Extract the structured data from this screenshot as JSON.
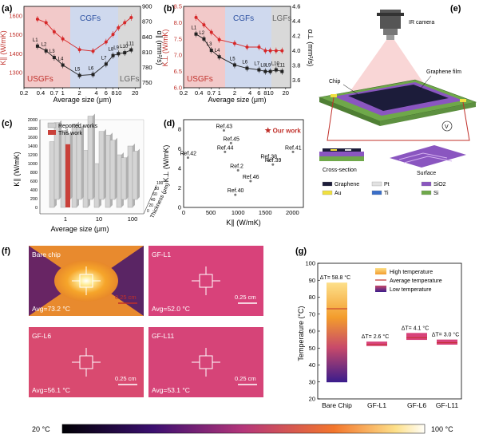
{
  "panels": {
    "a": {
      "label": "(a)",
      "regions": [
        "USGFs",
        "CGFs",
        "LGFs"
      ],
      "xlabel": "Average size (μm)",
      "ylabel_left": "K∥ (W/mK)",
      "ylabel_right": "α∥ (mm²/s)",
      "xticks": [
        "0.2",
        "0.4",
        "0.7",
        "1",
        "2",
        "4",
        "6",
        "8",
        "10",
        "20"
      ],
      "yticks_left": [
        "1300",
        "1400",
        "1500",
        "1600"
      ],
      "yticks_right": [
        "750",
        "780",
        "810",
        "840",
        "870",
        "900"
      ],
      "point_labels": [
        "L1",
        "L2",
        "L3",
        "L4",
        "L5",
        "L6",
        "L7",
        "L8",
        "L9",
        "L10",
        "L11"
      ]
    },
    "b": {
      "label": "(b)",
      "regions": [
        "USGFs",
        "CGFs",
        "LGFs"
      ],
      "xlabel": "Average size (μm)",
      "ylabel_left": "K⊥ (W/mK)",
      "ylabel_right": "α⊥ (mm²/s)",
      "xticks": [
        "0.2",
        "0.4",
        "0.7",
        "1",
        "2",
        "4",
        "6",
        "8",
        "10",
        "20"
      ],
      "yticks_left": [
        "6.0",
        "6.5",
        "7.0",
        "7.5",
        "8.0",
        "8.5"
      ],
      "yticks_right": [
        "3.6",
        "3.8",
        "4.0",
        "4.2",
        "4.4",
        "4.6"
      ],
      "point_labels": [
        "L1",
        "L2",
        "L3",
        "L4",
        "L5",
        "L6",
        "L7",
        "L8",
        "L9",
        "L10",
        "L11"
      ]
    },
    "c": {
      "label": "(c)",
      "legend": [
        "Reported works",
        "This work"
      ],
      "xlabel": "Average size (μm)",
      "ylabel": "K∥ (W/mK)",
      "zlabel": "Thickness (μm)",
      "yticks": [
        "0",
        "200",
        "400",
        "600",
        "800",
        "1000",
        "1200",
        "1400",
        "1600",
        "1800",
        "2000"
      ],
      "xticks": [
        "1",
        "10",
        "100"
      ],
      "zticks": [
        "0",
        "20",
        "40",
        "60",
        "80",
        "100"
      ]
    },
    "d": {
      "label": "(d)",
      "xlabel": "K∥ (W/mK)",
      "ylabel": "K⊥ (W/mK)",
      "xticks": [
        "0",
        "500",
        "1000",
        "1500",
        "2000"
      ],
      "yticks": [
        "0",
        "2",
        "4",
        "6",
        "8"
      ],
      "our_work": "Our work"
    },
    "e": {
      "label": "(e)",
      "ir_camera": "IR camera",
      "chip": "Chip",
      "graphene_film": "Graphene film",
      "v_label": "V",
      "cross_section": "Cross-section",
      "surface": "Surface",
      "legend": [
        {
          "name": "Graphene",
          "color": "#1c1c3a"
        },
        {
          "name": "Pt",
          "color": "#e2e2e2"
        },
        {
          "name": "SiO2",
          "color": "#8a56c0"
        },
        {
          "name": "Au",
          "color": "#f0e040"
        },
        {
          "name": "Ti",
          "color": "#3a6ec8"
        },
        {
          "name": "Si",
          "color": "#6fa84a"
        }
      ]
    },
    "f": {
      "label": "(f)",
      "images": [
        {
          "title": "Bare chip",
          "avg": "Avg=73.2 °C",
          "scale": "0.25 cm"
        },
        {
          "title": "GF-L1",
          "avg": "Avg=52.0 °C",
          "scale": "0.25 cm"
        },
        {
          "title": "GF-L6",
          "avg": "Avg=56.1 °C",
          "scale": "0.25 cm"
        },
        {
          "title": "GF-L11",
          "avg": "Avg=53.1 °C",
          "scale": "0.25 cm"
        }
      ]
    },
    "g": {
      "label": "(g)",
      "ylabel": "Temperature (°C)",
      "legend": [
        "High temperature",
        "Average temperature",
        "Low temperature"
      ],
      "yticks": [
        "20",
        "30",
        "40",
        "50",
        "60",
        "70",
        "80",
        "90",
        "100"
      ],
      "categories": [
        "Bare Chip",
        "GF-L1",
        "GF-L6",
        "GF-L11"
      ],
      "delta_labels": [
        "ΔT= 58.8 °C",
        "ΔT= 2.6 °C",
        "ΔT= 4.1 °C",
        "ΔT= 3.0 °C"
      ]
    }
  },
  "colorbar": {
    "min_label": "20 °C",
    "max_label": "100 °C"
  },
  "chart_data": [
    {
      "type": "line",
      "panel": "a",
      "xscale": "log",
      "xlim": [
        0.2,
        25
      ],
      "series": [
        {
          "name": "K∥",
          "axis": "left",
          "color": "#222222",
          "x": [
            0.35,
            0.5,
            0.7,
            1.0,
            2.0,
            3.5,
            6.0,
            8.0,
            10.0,
            13.0,
            17.0
          ],
          "y": [
            1440,
            1415,
            1380,
            1340,
            1285,
            1290,
            1345,
            1390,
            1400,
            1405,
            1420
          ]
        },
        {
          "name": "α∥",
          "axis": "right",
          "color": "#d62728",
          "x": [
            0.35,
            0.5,
            0.7,
            1.0,
            2.0,
            3.5,
            6.0,
            8.0,
            10.0,
            13.0,
            17.0
          ],
          "y": [
            875,
            868,
            850,
            836,
            815,
            812,
            830,
            845,
            858,
            868,
            878
          ]
        }
      ],
      "ylim_left": [
        1220,
        1650
      ],
      "ylim_right": [
        740,
        900
      ]
    },
    {
      "type": "line",
      "panel": "b",
      "xscale": "log",
      "xlim": [
        0.2,
        25
      ],
      "series": [
        {
          "name": "K⊥",
          "axis": "left",
          "color": "#222222",
          "x": [
            0.35,
            0.5,
            0.7,
            1.0,
            2.0,
            3.5,
            6.0,
            8.0,
            10.0,
            13.0,
            17.0
          ],
          "y": [
            7.65,
            7.5,
            7.15,
            6.95,
            6.7,
            6.6,
            6.55,
            6.5,
            6.5,
            6.55,
            6.5
          ]
        },
        {
          "name": "α⊥",
          "axis": "right",
          "color": "#d62728",
          "x": [
            0.35,
            0.5,
            0.7,
            1.0,
            2.0,
            3.5,
            6.0,
            8.0,
            10.0,
            13.0,
            17.0
          ],
          "y": [
            4.45,
            4.35,
            4.25,
            4.15,
            4.1,
            4.05,
            4.05,
            4.0,
            4.0,
            4.0,
            4.0
          ]
        }
      ],
      "ylim_left": [
        6.0,
        8.5
      ],
      "ylim_right": [
        3.5,
        4.6
      ]
    },
    {
      "type": "bar",
      "panel": "c",
      "reported_heights": [
        1500,
        1750,
        1900,
        1300,
        1000,
        1650,
        1200,
        1400,
        1750,
        1500,
        1650,
        1900,
        1550,
        1350,
        950,
        1100
      ],
      "this_work_height": 1440,
      "ylim": [
        0,
        2000
      ]
    },
    {
      "type": "scatter",
      "panel": "d",
      "points": [
        {
          "label": "Ref.43",
          "x": 740,
          "y": 7.9
        },
        {
          "label": "Ref.45",
          "x": 870,
          "y": 6.6
        },
        {
          "label": "Ref.44",
          "x": 760,
          "y": 5.7
        },
        {
          "label": "Ref.42",
          "x": 80,
          "y": 5.1
        },
        {
          "label": "Ref.2",
          "x": 1000,
          "y": 3.8
        },
        {
          "label": "Ref.46",
          "x": 1230,
          "y": 2.7
        },
        {
          "label": "Ref.40",
          "x": 950,
          "y": 1.3
        },
        {
          "label": "Ref.38",
          "x": 1560,
          "y": 4.8
        },
        {
          "label": "Ref.39",
          "x": 1640,
          "y": 4.4
        },
        {
          "label": "Ref.41",
          "x": 2010,
          "y": 5.7
        }
      ],
      "our_work": {
        "x": 1550,
        "y": 7.9
      },
      "xlim": [
        0,
        2200
      ],
      "ylim": [
        0,
        9
      ]
    },
    {
      "type": "bar",
      "panel": "g",
      "categories": [
        "Bare Chip",
        "GF-L1",
        "GF-L6",
        "GF-L11"
      ],
      "high": [
        88.6,
        53.8,
        58.9,
        55.0
      ],
      "avg": [
        73.2,
        52.0,
        56.1,
        53.1
      ],
      "low": [
        29.8,
        51.2,
        54.8,
        52.0
      ],
      "ylim": [
        20,
        100
      ]
    }
  ]
}
